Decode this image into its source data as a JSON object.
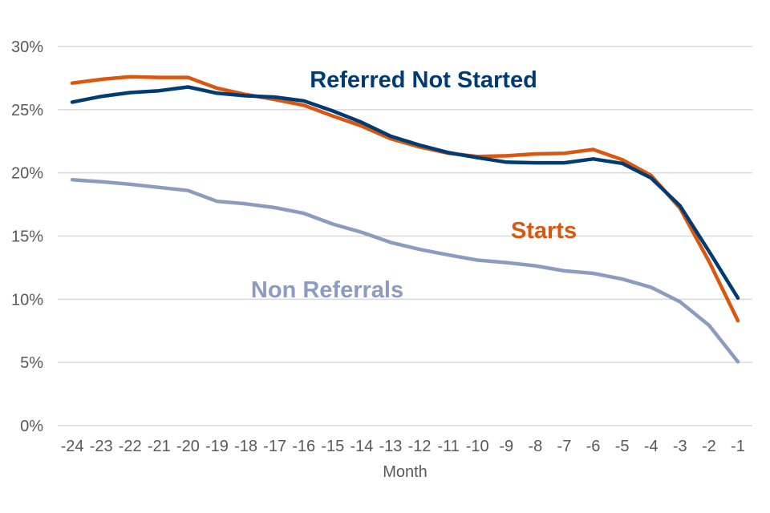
{
  "chart_data": {
    "type": "line",
    "xlabel": "Month",
    "ylabel": "",
    "x": [
      "-24",
      "-23",
      "-22",
      "-21",
      "-20",
      "-19",
      "-18",
      "-17",
      "-16",
      "-15",
      "-14",
      "-13",
      "-12",
      "-11",
      "-10",
      "-9",
      "-8",
      "-7",
      "-6",
      "-5",
      "-4",
      "-3",
      "-2",
      "-1"
    ],
    "ylim": [
      0,
      30
    ],
    "yticks": [
      0,
      5,
      10,
      15,
      20,
      25,
      30
    ],
    "ytick_labels": [
      "0%",
      "5%",
      "10%",
      "15%",
      "20%",
      "25%",
      "30%"
    ],
    "grid": true,
    "legend": "inline labels",
    "series": [
      {
        "name": "Starts",
        "color": "#d9570f",
        "values": [
          27.1,
          27.4,
          27.6,
          27.55,
          27.55,
          26.7,
          26.2,
          25.8,
          25.35,
          24.5,
          23.7,
          22.7,
          22.05,
          21.55,
          21.3,
          21.35,
          21.5,
          21.55,
          21.85,
          21.05,
          19.8,
          17.2,
          13.0,
          8.3
        ]
      },
      {
        "name": "Referred Not Started",
        "color": "#003b73",
        "values": [
          25.6,
          26.05,
          26.35,
          26.5,
          26.8,
          26.3,
          26.1,
          26.0,
          25.7,
          24.9,
          24.0,
          22.9,
          22.2,
          21.6,
          21.2,
          20.85,
          20.8,
          20.8,
          21.1,
          20.75,
          19.6,
          17.4,
          13.8,
          10.1
        ]
      },
      {
        "name": "Non Referrals",
        "color": "#8c9cc0",
        "values": [
          19.45,
          19.3,
          19.1,
          18.85,
          18.6,
          17.75,
          17.55,
          17.25,
          16.8,
          15.95,
          15.3,
          14.5,
          13.95,
          13.5,
          13.1,
          12.9,
          12.65,
          12.25,
          12.05,
          11.6,
          10.95,
          9.8,
          7.95,
          5.05
        ]
      }
    ]
  }
}
